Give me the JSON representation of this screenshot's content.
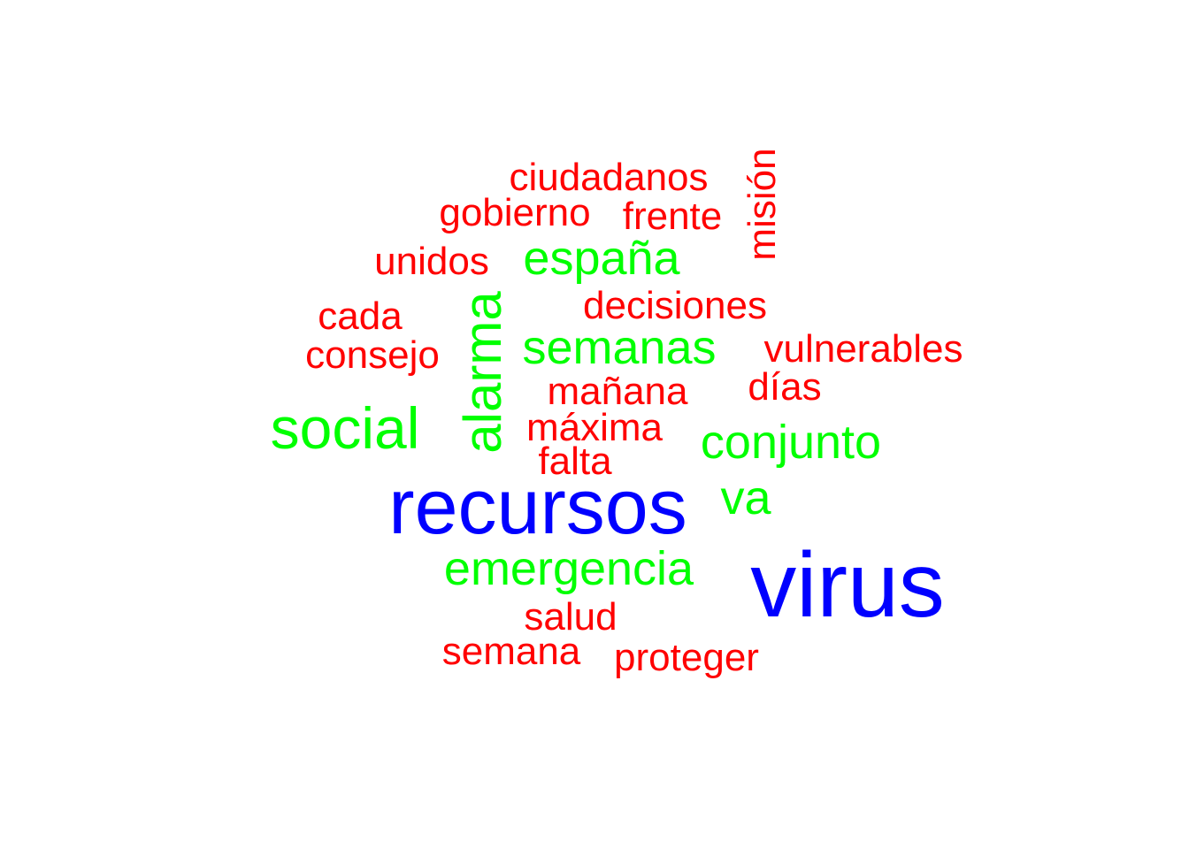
{
  "words": {
    "virus": {
      "text": "virus",
      "color": "#0000ff"
    },
    "recursos": {
      "text": "recursos",
      "color": "#0000ff"
    },
    "social": {
      "text": "social",
      "color": "#00ff00"
    },
    "semanas": {
      "text": "semanas",
      "color": "#00ff00"
    },
    "espana": {
      "text": "españa",
      "color": "#00ff00"
    },
    "conjunto": {
      "text": "conjunto",
      "color": "#00ff00"
    },
    "va": {
      "text": "va",
      "color": "#00ff00"
    },
    "emergencia": {
      "text": "emergencia",
      "color": "#00ff00"
    },
    "alarma": {
      "text": "alarma",
      "color": "#00ff00",
      "rotated": true
    },
    "ciudadanos": {
      "text": "ciudadanos",
      "color": "#ff0000"
    },
    "gobierno": {
      "text": "gobierno",
      "color": "#ff0000"
    },
    "frente": {
      "text": "frente",
      "color": "#ff0000"
    },
    "mision": {
      "text": "misión",
      "color": "#ff0000",
      "rotated": true
    },
    "unidos": {
      "text": "unidos",
      "color": "#ff0000"
    },
    "decisiones": {
      "text": "decisiones",
      "color": "#ff0000"
    },
    "cada": {
      "text": "cada",
      "color": "#ff0000"
    },
    "consejo": {
      "text": "consejo",
      "color": "#ff0000"
    },
    "vulnerables": {
      "text": "vulnerables",
      "color": "#ff0000"
    },
    "manana": {
      "text": "mañana",
      "color": "#ff0000"
    },
    "dias": {
      "text": "días",
      "color": "#ff0000"
    },
    "maxima": {
      "text": "máxima",
      "color": "#ff0000"
    },
    "falta": {
      "text": "falta",
      "color": "#ff0000"
    },
    "salud": {
      "text": "salud",
      "color": "#ff0000"
    },
    "semana": {
      "text": "semana",
      "color": "#ff0000"
    },
    "proteger": {
      "text": "proteger",
      "color": "#ff0000"
    }
  }
}
